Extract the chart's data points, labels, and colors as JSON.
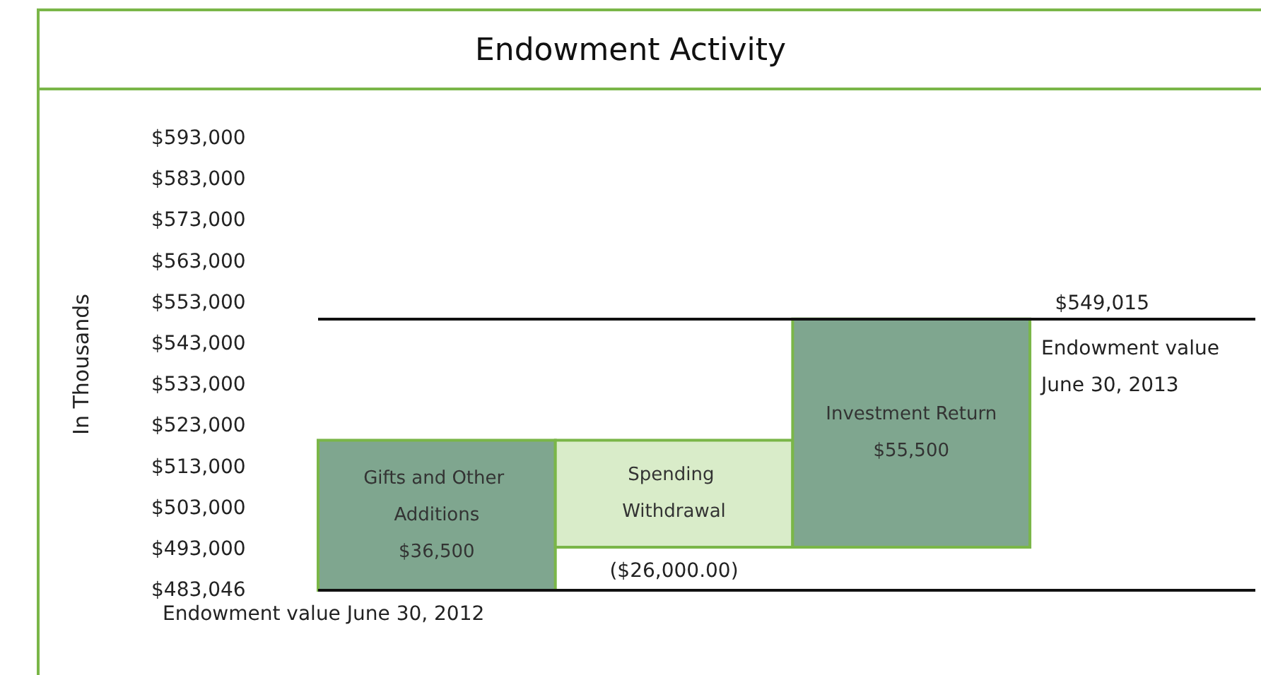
{
  "chart_data": {
    "type": "bar",
    "title": "Endowment Activity",
    "ylabel": "In Thousands",
    "categories": [
      "Gifts and Other Additions",
      "Spending Withdrawal",
      "Investment Return"
    ],
    "base": [
      483046,
      519546,
      493546
    ],
    "values": [
      36500,
      -26000,
      55500
    ],
    "value_labels": [
      "$36,500",
      "($26,000.00)",
      "$55,500"
    ],
    "colors": [
      "#7fa68f",
      "#d9ecc9",
      "#7fa68f"
    ],
    "ylim": [
      483046,
      593000
    ],
    "yticks": [
      {
        "value": 483046,
        "label": "$483,046"
      },
      {
        "value": 493000,
        "label": "$493,000"
      },
      {
        "value": 503000,
        "label": "$503,000"
      },
      {
        "value": 513000,
        "label": "$513,000"
      },
      {
        "value": 523000,
        "label": "$523,000"
      },
      {
        "value": 533000,
        "label": "$533,000"
      },
      {
        "value": 543000,
        "label": "$543,000"
      },
      {
        "value": 553000,
        "label": "$553,000"
      },
      {
        "value": 563000,
        "label": "$563,000"
      },
      {
        "value": 573000,
        "label": "$573,000"
      },
      {
        "value": 583000,
        "label": "$583,000"
      },
      {
        "value": 593000,
        "label": "$593,000"
      }
    ],
    "tick_labels": "y",
    "grid": false,
    "ref_lines": [
      {
        "axis": "y",
        "value": 483046,
        "label": "Endowment value June 30, 2012",
        "color": "#111111"
      },
      {
        "axis": "y",
        "value": 549015,
        "label": "$549,015",
        "color": "#111111"
      }
    ],
    "annotations": [
      "Endowment value June 30, 2013"
    ]
  }
}
